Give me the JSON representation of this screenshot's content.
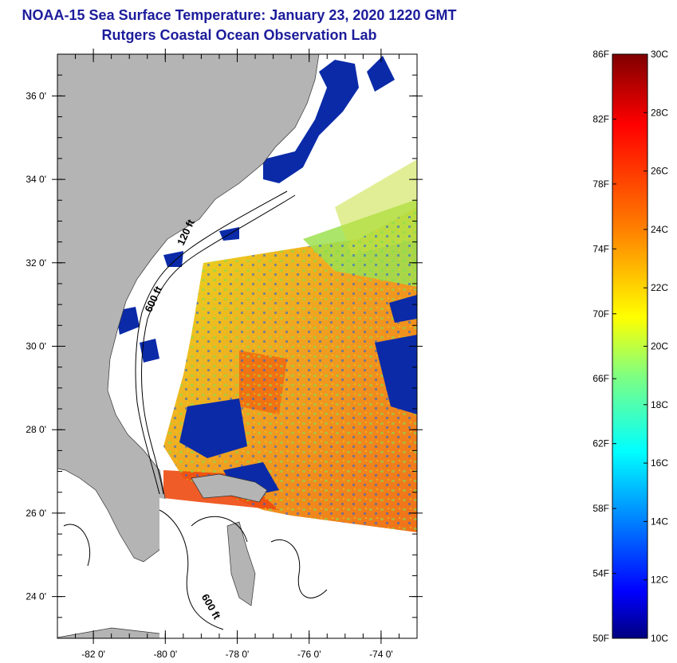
{
  "title": "NOAA-15 Sea Surface Temperature:  January 23, 2020 1220 GMT",
  "subtitle": "Rutgers Coastal Ocean Observation Lab",
  "map": {
    "lat_range": [
      23,
      37
    ],
    "lon_range": [
      -83,
      -73
    ],
    "lat_ticks": [
      {
        "value": 24,
        "label": "24 0'"
      },
      {
        "value": 26,
        "label": "26 0'"
      },
      {
        "value": 28,
        "label": "28 0'"
      },
      {
        "value": 30,
        "label": "30 0'"
      },
      {
        "value": 32,
        "label": "32 0'"
      },
      {
        "value": 34,
        "label": "34 0'"
      },
      {
        "value": 36,
        "label": "36 0'"
      }
    ],
    "lon_ticks": [
      {
        "value": -82,
        "label": "-82 0'"
      },
      {
        "value": -80,
        "label": "-80 0'"
      },
      {
        "value": -78,
        "label": "-78 0'"
      },
      {
        "value": -76,
        "label": "-76 0'"
      },
      {
        "value": -74,
        "label": "-74 0'"
      }
    ],
    "contour_labels": [
      {
        "text": "120 ft",
        "lon": -79.5,
        "lat": 32.4
      },
      {
        "text": "600 ft",
        "lon": -80.4,
        "lat": 30.8
      },
      {
        "text": "600 ft",
        "lon": -79.0,
        "lat": 24.0
      }
    ],
    "colors": {
      "land": "#b4b4b4",
      "cloud": "#ffffff",
      "contour": "#000000"
    }
  },
  "colorbar": {
    "fahrenheit_labels": [
      "86F",
      "82F",
      "78F",
      "74F",
      "70F",
      "66F",
      "62F",
      "58F",
      "54F",
      "50F"
    ],
    "celsius_labels": [
      "30C",
      "28C",
      "26C",
      "24C",
      "22C",
      "20C",
      "18C",
      "16C",
      "14C",
      "12C",
      "10C"
    ],
    "range_c": [
      10,
      30
    ],
    "colormap": [
      "#00007f",
      "#0000ff",
      "#0080ff",
      "#00ffff",
      "#80ff80",
      "#ffff00",
      "#ff8000",
      "#ff0000",
      "#7f0000"
    ]
  }
}
